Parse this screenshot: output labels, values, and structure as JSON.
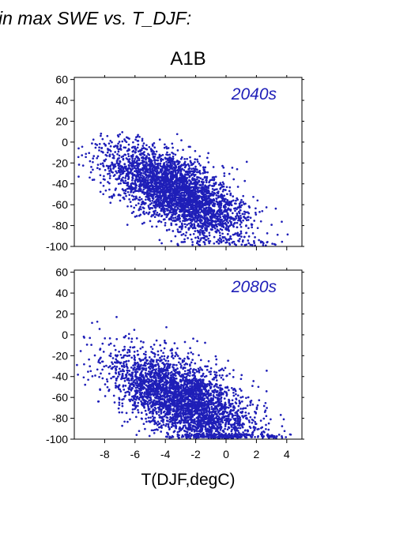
{
  "header_text": "in max SWE vs. T_DJF:",
  "scenario_title": "A1B",
  "xlabel": "T(DJF,degC)",
  "point_color": "#1f1fb8",
  "chart_data": [
    {
      "type": "scatter",
      "panel_label": "2040s",
      "xlim": [
        -10,
        5
      ],
      "ylim": [
        -100,
        62
      ],
      "x_ticks": [
        -8,
        -6,
        -4,
        -2,
        0,
        2,
        4
      ],
      "y_ticks": [
        60,
        40,
        20,
        0,
        -20,
        -40,
        -60,
        -80,
        -100
      ],
      "x_ticklabels_shown": false,
      "grid": false
    },
    {
      "type": "scatter",
      "panel_label": "2080s",
      "xlim": [
        -10,
        5
      ],
      "ylim": [
        -100,
        62
      ],
      "x_ticks": [
        -8,
        -6,
        -4,
        -2,
        0,
        2,
        4
      ],
      "y_ticks": [
        60,
        40,
        20,
        0,
        -20,
        -40,
        -60,
        -80,
        -100
      ],
      "x_ticklabels_shown": true,
      "grid": false
    }
  ]
}
